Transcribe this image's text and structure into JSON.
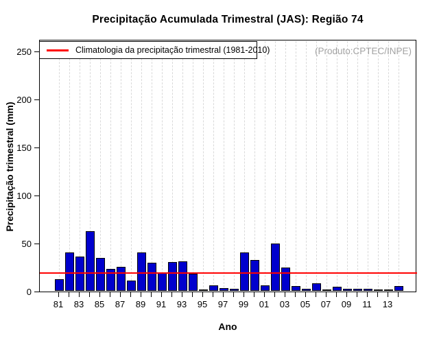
{
  "title": "Precipitação Acumulada Trimestral (JAS): Região 74",
  "watermark": "(Produto:CPTEC/INPE)",
  "legend": {
    "label": "Climatologia da precipitação trimestral (1981-2010)",
    "line_color": "#FF0000"
  },
  "colors": {
    "bar": "#0000CD",
    "bar_border": "#000000",
    "climatology_line": "#FF0000",
    "grid": "#D9D9D9",
    "watermark_text": "#A3A3A3"
  },
  "chart_data": {
    "type": "bar",
    "title": "Precipitação Acumulada Trimestral (JAS): Região 74",
    "xlabel": "Ano",
    "ylabel": "Precipitação trimestral (mm)",
    "ylim": [
      0,
      260
    ],
    "y_ticks": [
      0,
      50,
      100,
      150,
      200,
      250
    ],
    "grid": "vertical-dashed-per-year",
    "legend_position": "top-left",
    "years": [
      1981,
      1982,
      1983,
      1984,
      1985,
      1986,
      1987,
      1988,
      1989,
      1990,
      1991,
      1992,
      1993,
      1994,
      1995,
      1996,
      1997,
      1998,
      1999,
      2000,
      2001,
      2002,
      2003,
      2004,
      2005,
      2006,
      2007,
      2008,
      2009,
      2010,
      2011,
      2012,
      2013,
      2014
    ],
    "categories": [
      "81",
      "82",
      "83",
      "84",
      "85",
      "86",
      "87",
      "88",
      "89",
      "90",
      "91",
      "92",
      "93",
      "94",
      "95",
      "96",
      "97",
      "98",
      "99",
      "00",
      "01",
      "02",
      "03",
      "04",
      "05",
      "06",
      "07",
      "08",
      "09",
      "10",
      "11",
      "12",
      "13",
      "14"
    ],
    "values": [
      12,
      40,
      36,
      62,
      34,
      23,
      25,
      11,
      40,
      29,
      19,
      30,
      31,
      18,
      1,
      6,
      3,
      2,
      40,
      32,
      6,
      49,
      24,
      5,
      2,
      8,
      0.5,
      4,
      2,
      2,
      2,
      1,
      1,
      5
    ],
    "visible_x_tick_labels": [
      "81",
      "83",
      "85",
      "87",
      "89",
      "91",
      "93",
      "95",
      "97",
      "99",
      "01",
      "03",
      "05",
      "07",
      "09",
      "11",
      "13"
    ],
    "climatology_mm": 20
  }
}
